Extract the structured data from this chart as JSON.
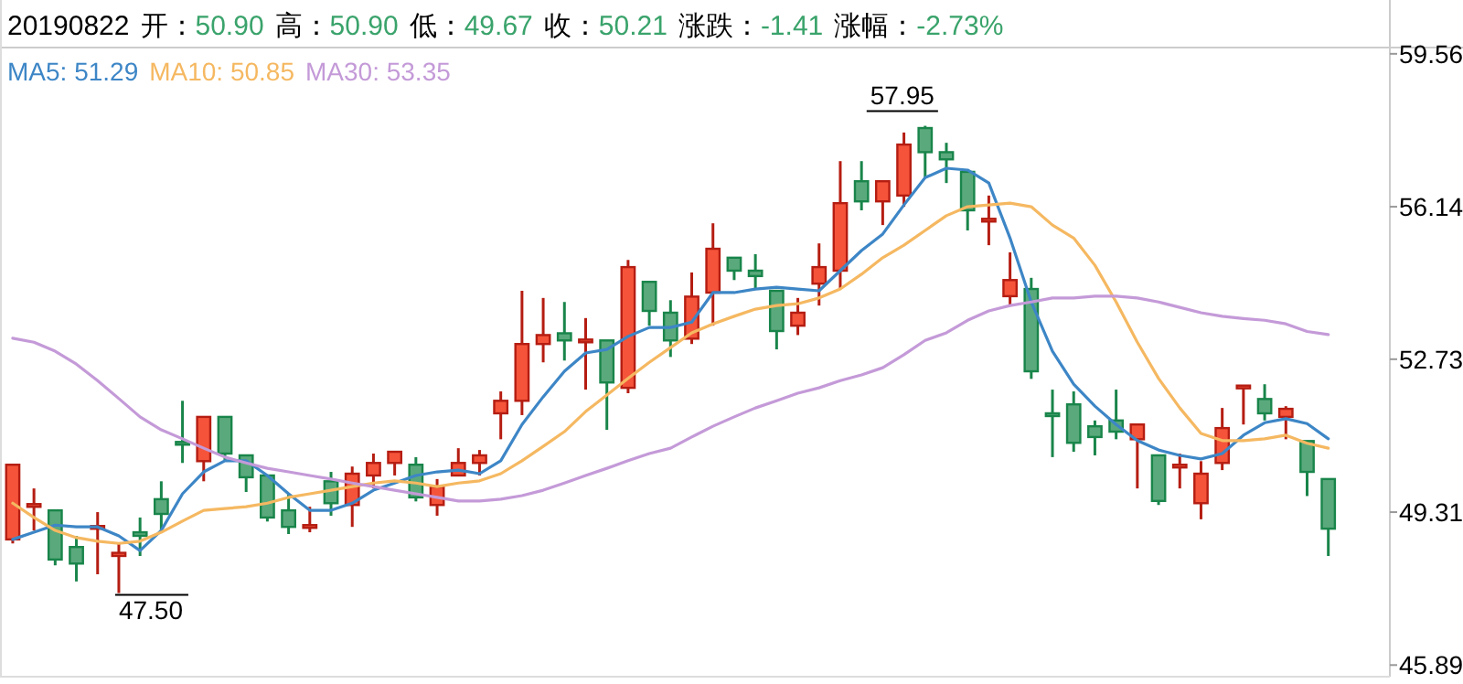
{
  "chart_data": {
    "type": "candlestick",
    "categories": [
      null,
      null,
      null,
      null,
      null,
      null,
      null,
      null,
      null,
      null,
      null,
      null,
      null,
      null,
      null,
      null,
      null,
      null,
      null,
      null,
      null,
      null,
      null,
      null,
      null,
      null,
      null,
      null,
      null,
      null,
      null,
      null,
      null,
      null,
      null,
      null,
      null,
      null,
      null,
      null,
      null,
      null,
      null,
      null,
      null,
      null,
      null,
      null,
      null,
      null,
      null,
      null,
      null,
      null,
      null,
      null,
      null,
      null,
      null,
      null,
      null,
      null,
      null
    ],
    "ohlc": [
      [
        48.7,
        50.37,
        48.61,
        50.37
      ],
      [
        49.47,
        49.84,
        48.9,
        49.49
      ],
      [
        49.35,
        49.35,
        48.12,
        48.25
      ],
      [
        48.53,
        48.78,
        47.76,
        48.16
      ],
      [
        48.94,
        49.31,
        47.92,
        49.0
      ],
      [
        48.33,
        48.61,
        47.5,
        48.4
      ],
      [
        48.86,
        49.19,
        48.33,
        48.78
      ],
      [
        49.6,
        50.0,
        48.9,
        49.27
      ],
      [
        50.88,
        51.8,
        50.41,
        50.82
      ],
      [
        50.45,
        51.44,
        50.0,
        51.44
      ],
      [
        51.44,
        51.44,
        50.45,
        50.62
      ],
      [
        50.58,
        50.6,
        49.76,
        50.09
      ],
      [
        50.13,
        50.13,
        49.1,
        49.19
      ],
      [
        49.35,
        49.72,
        48.82,
        48.98
      ],
      [
        48.98,
        49.43,
        48.86,
        49.02
      ],
      [
        50.0,
        50.21,
        49.23,
        49.51
      ],
      [
        49.47,
        50.33,
        48.98,
        50.17
      ],
      [
        50.13,
        50.62,
        49.84,
        50.41
      ],
      [
        50.41,
        50.66,
        50.13,
        50.66
      ],
      [
        50.37,
        50.54,
        49.55,
        49.64
      ],
      [
        49.47,
        50.05,
        49.23,
        49.88
      ],
      [
        50.13,
        50.74,
        50.13,
        50.41
      ],
      [
        50.41,
        50.7,
        50.13,
        50.58
      ],
      [
        51.52,
        52.01,
        50.94,
        51.8
      ],
      [
        51.8,
        54.26,
        51.48,
        53.07
      ],
      [
        53.07,
        54.1,
        52.66,
        53.27
      ],
      [
        53.31,
        54.01,
        52.7,
        53.15
      ],
      [
        53.13,
        53.65,
        52.05,
        53.17
      ],
      [
        53.15,
        53.15,
        51.15,
        52.21
      ],
      [
        52.09,
        54.95,
        51.97,
        54.79
      ],
      [
        54.46,
        54.46,
        53.48,
        53.81
      ],
      [
        53.77,
        54.05,
        52.78,
        53.15
      ],
      [
        53.19,
        54.67,
        53.07,
        54.13
      ],
      [
        54.22,
        55.77,
        53.48,
        55.2
      ],
      [
        55.0,
        55.0,
        54.5,
        54.71
      ],
      [
        54.71,
        55.08,
        54.3,
        54.59
      ],
      [
        54.26,
        54.26,
        52.95,
        53.36
      ],
      [
        53.48,
        54.1,
        53.27,
        53.77
      ],
      [
        54.42,
        55.32,
        53.93,
        54.79
      ],
      [
        54.71,
        57.16,
        54.3,
        56.22
      ],
      [
        56.71,
        57.16,
        56.06,
        56.26
      ],
      [
        56.26,
        56.71,
        55.73,
        56.71
      ],
      [
        56.39,
        57.8,
        56.14,
        57.53
      ],
      [
        57.9,
        57.95,
        56.79,
        57.36
      ],
      [
        57.36,
        57.57,
        56.67,
        57.2
      ],
      [
        56.92,
        56.92,
        55.61,
        56.06
      ],
      [
        55.85,
        56.39,
        55.28,
        55.87
      ],
      [
        54.14,
        55.12,
        53.93,
        54.5
      ],
      [
        54.3,
        54.55,
        52.29,
        52.46
      ],
      [
        51.52,
        52.05,
        50.54,
        51.48
      ],
      [
        51.72,
        52.01,
        50.66,
        50.86
      ],
      [
        51.23,
        51.36,
        50.58,
        50.99
      ],
      [
        51.36,
        52.05,
        50.94,
        51.11
      ],
      [
        50.94,
        51.27,
        49.84,
        51.27
      ],
      [
        50.58,
        50.58,
        49.47,
        49.56
      ],
      [
        50.35,
        50.62,
        49.84,
        50.37
      ],
      [
        49.51,
        50.45,
        49.15,
        50.17
      ],
      [
        50.41,
        51.64,
        50.25,
        51.19
      ],
      [
        52.12,
        52.14,
        51.27,
        52.14
      ],
      [
        51.84,
        52.17,
        51.36,
        51.52
      ],
      [
        51.44,
        51.68,
        50.94,
        51.62
      ],
      [
        50.9,
        50.9,
        49.67,
        50.21
      ],
      [
        50.05,
        50.05,
        48.33,
        48.94
      ]
    ],
    "series": [
      {
        "name": "MA5: 51.29",
        "type": "line",
        "color": "#3d86c6",
        "values": [
          48.7,
          48.86,
          49.02,
          48.98,
          48.98,
          48.78,
          48.45,
          48.9,
          49.72,
          50.21,
          50.46,
          50.46,
          50.13,
          49.72,
          49.35,
          49.35,
          49.51,
          49.8,
          49.96,
          50.13,
          50.21,
          50.25,
          50.17,
          50.46,
          51.27,
          51.89,
          52.46,
          52.87,
          52.95,
          53.24,
          53.44,
          53.44,
          53.56,
          54.22,
          54.22,
          54.3,
          54.34,
          54.3,
          54.26,
          54.71,
          55.16,
          55.53,
          56.18,
          56.79,
          57.0,
          56.96,
          56.67,
          55.44,
          54.01,
          52.91,
          52.17,
          51.68,
          51.27,
          50.91,
          50.7,
          50.58,
          50.5,
          50.62,
          51.03,
          51.31,
          51.4,
          51.29,
          50.95
        ]
      },
      {
        "name": "MA10: 50.85",
        "type": "line",
        "color": "#f5b861",
        "values": [
          49.51,
          49.19,
          48.9,
          48.74,
          48.66,
          48.61,
          48.66,
          48.86,
          49.11,
          49.35,
          49.39,
          49.43,
          49.51,
          49.64,
          49.72,
          49.8,
          49.88,
          49.96,
          50.01,
          49.96,
          49.88,
          49.96,
          50.01,
          50.17,
          50.46,
          50.78,
          51.11,
          51.56,
          51.93,
          52.3,
          52.66,
          52.99,
          53.32,
          53.52,
          53.69,
          53.85,
          53.93,
          53.97,
          54.1,
          54.3,
          54.63,
          55.0,
          55.28,
          55.61,
          55.94,
          56.14,
          56.18,
          56.22,
          56.14,
          55.73,
          55.44,
          54.83,
          54.01,
          53.11,
          52.3,
          51.64,
          51.07,
          50.91,
          50.91,
          50.95,
          51.03,
          50.85,
          50.74
        ]
      },
      {
        "name": "MA30: 53.35",
        "type": "line",
        "color": "#c49ad8",
        "values": [
          53.2,
          53.11,
          52.91,
          52.62,
          52.25,
          51.85,
          51.44,
          51.15,
          50.95,
          50.74,
          50.54,
          50.41,
          50.29,
          50.21,
          50.13,
          50.05,
          49.96,
          49.88,
          49.8,
          49.72,
          49.64,
          49.56,
          49.56,
          49.6,
          49.68,
          49.8,
          49.96,
          50.13,
          50.29,
          50.46,
          50.62,
          50.74,
          50.99,
          51.23,
          51.44,
          51.64,
          51.8,
          51.97,
          52.09,
          52.25,
          52.38,
          52.54,
          52.83,
          53.15,
          53.32,
          53.6,
          53.81,
          53.93,
          54.01,
          54.1,
          54.1,
          54.14,
          54.14,
          54.1,
          54.01,
          53.89,
          53.77,
          53.69,
          53.64,
          53.6,
          53.52,
          53.35,
          53.28
        ]
      }
    ],
    "ylim": [
      45.63,
      59.7
    ],
    "yticks": [
      45.89,
      49.31,
      52.73,
      56.14,
      59.56
    ],
    "legend": "top left",
    "annotations": [
      "20190822",
      "开：50.90",
      "高：50.90",
      "低：49.67",
      "收：50.21",
      "涨跌：-1.41",
      "涨幅：-2.73%",
      {
        "text": "57.95",
        "y": 57.95
      },
      {
        "text": "47.50"
      }
    ]
  }
}
